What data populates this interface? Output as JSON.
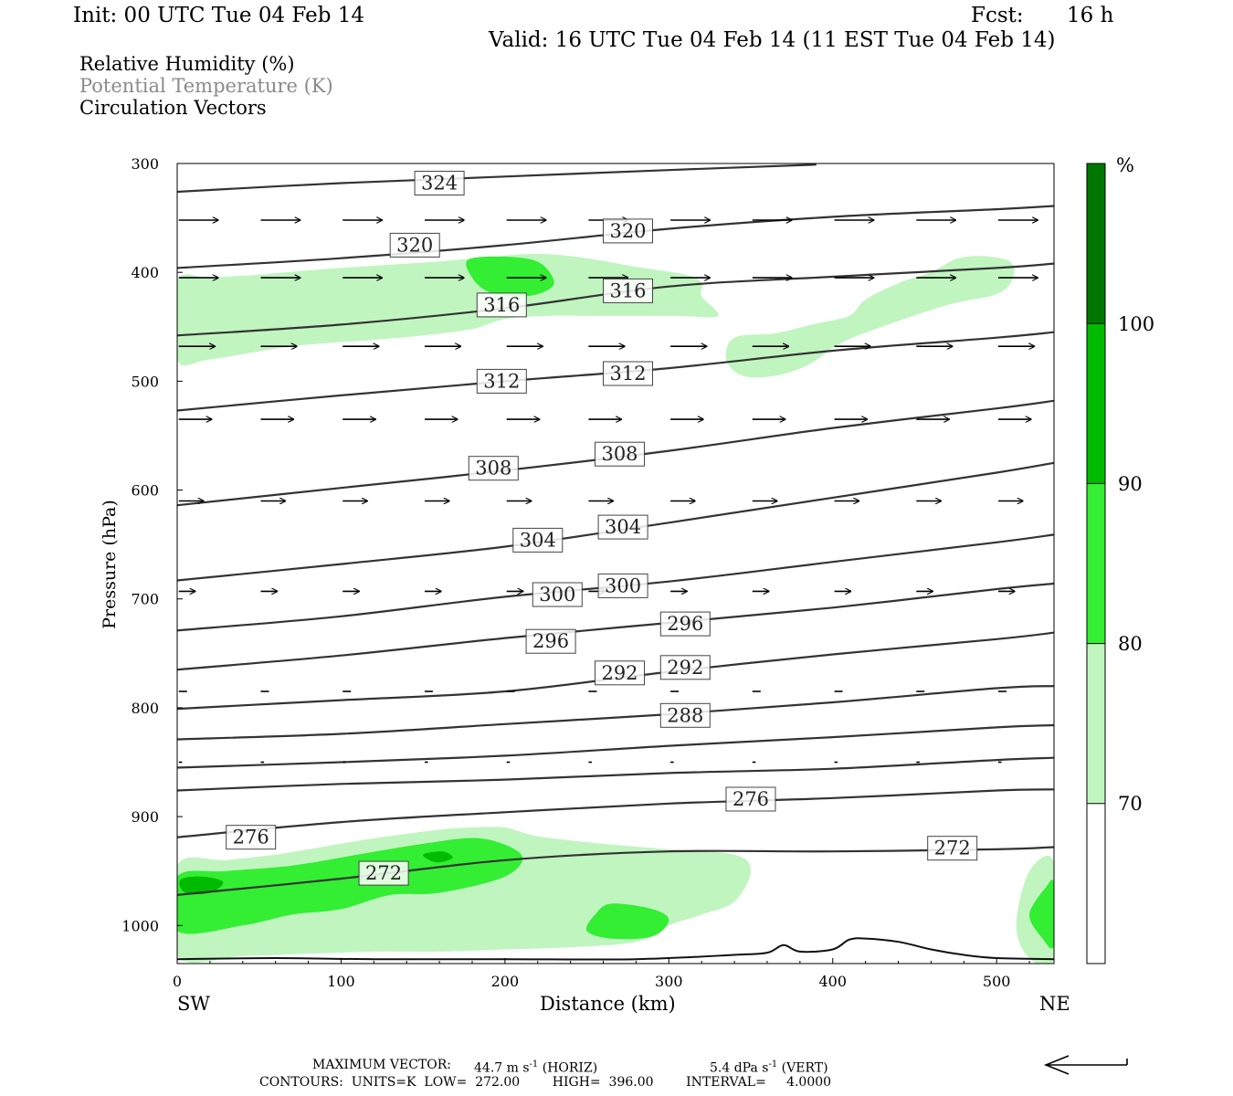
{
  "header": {
    "init": "Init: 00 UTC Tue 04 Feb 14",
    "fcst_label": "Fcst:",
    "fcst_value": "16 h",
    "valid": "Valid: 16 UTC Tue 04 Feb 14 (11 EST Tue 04 Feb 14)"
  },
  "legend_lines": {
    "rh": "Relative Humidity (%)",
    "theta": "Potential Temperature (K)",
    "vectors": "Circulation Vectors"
  },
  "chart_data": {
    "type": "heatmap",
    "xlabel": "Distance (km)",
    "ylabel": "Pressure (hPa)",
    "xlim": [
      0,
      535
    ],
    "ylim": [
      1035,
      300
    ],
    "y_scale": "linear",
    "x_ticks": [
      0,
      100,
      200,
      300,
      400,
      500
    ],
    "y_ticks": [
      300,
      400,
      500,
      600,
      700,
      800,
      900,
      1000
    ],
    "x_end_labels": {
      "left": "SW",
      "right": "NE"
    },
    "rh_colorbar": {
      "unit": "%",
      "levels": [
        70,
        80,
        90,
        100
      ],
      "colors": [
        "#ffffff",
        "#c0f5c0",
        "#33ee33",
        "#00bb00",
        "#007700"
      ]
    },
    "rh_regions": [
      {
        "level": 70,
        "color": "#c0f5c0",
        "points": [
          [
            0,
            408
          ],
          [
            20,
            405
          ],
          [
            50,
            402
          ],
          [
            90,
            397
          ],
          [
            130,
            393
          ],
          [
            160,
            390
          ],
          [
            190,
            386
          ],
          [
            220,
            383
          ],
          [
            250,
            387
          ],
          [
            280,
            395
          ],
          [
            310,
            402
          ],
          [
            320,
            410
          ],
          [
            320,
            422
          ],
          [
            330,
            440
          ],
          [
            305,
            440
          ],
          [
            260,
            440
          ],
          [
            225,
            440
          ],
          [
            200,
            443
          ],
          [
            180,
            452
          ],
          [
            150,
            458
          ],
          [
            120,
            462
          ],
          [
            70,
            468
          ],
          [
            20,
            480
          ],
          [
            0,
            480
          ]
        ]
      },
      {
        "level": 70,
        "color": "#c0f5c0",
        "points": [
          [
            340,
            460
          ],
          [
            365,
            456
          ],
          [
            390,
            447
          ],
          [
            410,
            440
          ],
          [
            420,
            425
          ],
          [
            440,
            410
          ],
          [
            460,
            400
          ],
          [
            475,
            388
          ],
          [
            490,
            385
          ],
          [
            508,
            390
          ],
          [
            510,
            405
          ],
          [
            500,
            420
          ],
          [
            470,
            430
          ],
          [
            430,
            450
          ],
          [
            405,
            465
          ],
          [
            385,
            485
          ],
          [
            365,
            495
          ],
          [
            345,
            495
          ],
          [
            335,
            480
          ]
        ]
      },
      {
        "level": 70,
        "color": "#c0f5c0",
        "points": [
          [
            0,
            945
          ],
          [
            30,
            940
          ],
          [
            60,
            935
          ],
          [
            80,
            930
          ],
          [
            120,
            920
          ],
          [
            160,
            912
          ],
          [
            180,
            910
          ],
          [
            200,
            910
          ],
          [
            220,
            918
          ],
          [
            260,
            925
          ],
          [
            300,
            930
          ],
          [
            340,
            935
          ],
          [
            350,
            950
          ],
          [
            340,
            978
          ],
          [
            320,
            990
          ],
          [
            300,
            1000
          ],
          [
            280,
            1015
          ],
          [
            240,
            1020
          ],
          [
            200,
            1022
          ],
          [
            160,
            1024
          ],
          [
            120,
            1024
          ],
          [
            80,
            1026
          ],
          [
            40,
            1028
          ],
          [
            0,
            1028
          ]
        ]
      },
      {
        "level": 70,
        "color": "#c0f5c0",
        "points": [
          [
            520,
            950
          ],
          [
            535,
            942
          ],
          [
            535,
            1030
          ],
          [
            520,
            1030
          ],
          [
            512,
            1000
          ]
        ]
      },
      {
        "level": 80,
        "color": "#33ee33",
        "points": [
          [
            178,
            388
          ],
          [
            205,
            386
          ],
          [
            222,
            392
          ],
          [
            230,
            410
          ],
          [
            220,
            420
          ],
          [
            205,
            422
          ],
          [
            190,
            418
          ],
          [
            180,
            405
          ]
        ]
      },
      {
        "level": 80,
        "color": "#33ee33",
        "points": [
          [
            0,
            955
          ],
          [
            30,
            950
          ],
          [
            70,
            945
          ],
          [
            110,
            935
          ],
          [
            150,
            925
          ],
          [
            185,
            920
          ],
          [
            210,
            935
          ],
          [
            200,
            955
          ],
          [
            160,
            970
          ],
          [
            130,
            972
          ],
          [
            100,
            985
          ],
          [
            70,
            990
          ],
          [
            40,
            1000
          ],
          [
            0,
            1005
          ]
        ]
      },
      {
        "level": 80,
        "color": "#33ee33",
        "points": [
          [
            265,
            980
          ],
          [
            290,
            985
          ],
          [
            300,
            995
          ],
          [
            290,
            1010
          ],
          [
            265,
            1012
          ],
          [
            250,
            1005
          ],
          [
            255,
            990
          ]
        ]
      },
      {
        "level": 80,
        "color": "#33ee33",
        "points": [
          [
            530,
            965
          ],
          [
            535,
            962
          ],
          [
            535,
            1018
          ],
          [
            528,
            1012
          ],
          [
            520,
            990
          ]
        ]
      },
      {
        "level": 90,
        "color": "#00bb00",
        "points": [
          [
            2,
            958
          ],
          [
            15,
            955
          ],
          [
            28,
            960
          ],
          [
            20,
            970
          ],
          [
            5,
            970
          ]
        ]
      },
      {
        "level": 90,
        "color": "#00bb00",
        "points": [
          [
            150,
            935
          ],
          [
            162,
            932
          ],
          [
            168,
            938
          ],
          [
            158,
            942
          ]
        ]
      }
    ],
    "theta_contours": [
      {
        "value": 324,
        "p": [
          [
            0,
            326
          ],
          [
            100,
            318
          ],
          [
            200,
            312
          ],
          [
            300,
            306
          ],
          [
            390,
            301
          ]
        ]
      },
      {
        "value": 320,
        "p": [
          [
            0,
            396
          ],
          [
            100,
            387
          ],
          [
            200,
            375
          ],
          [
            300,
            360
          ],
          [
            400,
            349
          ],
          [
            500,
            342
          ],
          [
            535,
            339
          ]
        ]
      },
      {
        "value": 316,
        "p": [
          [
            0,
            458
          ],
          [
            100,
            448
          ],
          [
            200,
            433
          ],
          [
            300,
            413
          ],
          [
            400,
            404
          ],
          [
            500,
            396
          ],
          [
            535,
            392
          ]
        ]
      },
      {
        "value": 312,
        "p": [
          [
            0,
            527
          ],
          [
            100,
            513
          ],
          [
            200,
            500
          ],
          [
            300,
            488
          ],
          [
            400,
            472
          ],
          [
            500,
            460
          ],
          [
            535,
            455
          ]
        ]
      },
      {
        "value": 308,
        "p": [
          [
            0,
            614
          ],
          [
            100,
            598
          ],
          [
            200,
            582
          ],
          [
            300,
            564
          ],
          [
            400,
            543
          ],
          [
            500,
            525
          ],
          [
            535,
            518
          ]
        ]
      },
      {
        "value": 304,
        "p": [
          [
            0,
            683
          ],
          [
            100,
            668
          ],
          [
            200,
            652
          ],
          [
            300,
            630
          ],
          [
            400,
            607
          ],
          [
            500,
            584
          ],
          [
            535,
            575
          ]
        ]
      },
      {
        "value": 300,
        "p": [
          [
            0,
            729
          ],
          [
            100,
            716
          ],
          [
            200,
            698
          ],
          [
            300,
            684
          ],
          [
            400,
            666
          ],
          [
            500,
            648
          ],
          [
            535,
            641
          ]
        ]
      },
      {
        "value": 296,
        "p": [
          [
            0,
            765
          ],
          [
            100,
            752
          ],
          [
            200,
            736
          ],
          [
            300,
            722
          ],
          [
            400,
            708
          ],
          [
            500,
            691
          ],
          [
            535,
            686
          ]
        ]
      },
      {
        "value": 292,
        "p": [
          [
            0,
            801
          ],
          [
            100,
            793
          ],
          [
            200,
            785
          ],
          [
            300,
            767
          ],
          [
            400,
            751
          ],
          [
            500,
            737
          ],
          [
            535,
            731
          ]
        ]
      },
      {
        "value": 288,
        "p": [
          [
            0,
            829
          ],
          [
            100,
            824
          ],
          [
            200,
            815
          ],
          [
            300,
            806
          ],
          [
            400,
            795
          ],
          [
            500,
            782
          ],
          [
            535,
            780
          ]
        ]
      },
      {
        "value": 284,
        "p": [
          [
            0,
            855
          ],
          [
            100,
            850
          ],
          [
            200,
            844
          ],
          [
            300,
            835
          ],
          [
            400,
            827
          ],
          [
            500,
            818
          ],
          [
            535,
            816
          ]
        ]
      },
      {
        "value": 280,
        "p": [
          [
            0,
            876
          ],
          [
            100,
            870
          ],
          [
            200,
            866
          ],
          [
            300,
            860
          ],
          [
            400,
            856
          ],
          [
            500,
            848
          ],
          [
            535,
            846
          ]
        ]
      },
      {
        "value": 276,
        "p": [
          [
            0,
            919
          ],
          [
            100,
            905
          ],
          [
            200,
            896
          ],
          [
            300,
            888
          ],
          [
            400,
            883
          ],
          [
            500,
            876
          ],
          [
            535,
            875
          ]
        ]
      },
      {
        "value": 272,
        "p": [
          [
            0,
            972
          ],
          [
            100,
            957
          ],
          [
            200,
            940
          ],
          [
            300,
            932
          ],
          [
            400,
            932
          ],
          [
            500,
            930
          ],
          [
            535,
            928
          ]
        ]
      }
    ],
    "surface_line": [
      [
        0,
        1031
      ],
      [
        60,
        1030
      ],
      [
        120,
        1031
      ],
      [
        200,
        1031
      ],
      [
        280,
        1031
      ],
      [
        340,
        1027
      ],
      [
        360,
        1025
      ],
      [
        370,
        1018
      ],
      [
        380,
        1024
      ],
      [
        400,
        1022
      ],
      [
        410,
        1013
      ],
      [
        420,
        1012
      ],
      [
        440,
        1015
      ],
      [
        460,
        1022
      ],
      [
        480,
        1027
      ],
      [
        500,
        1030
      ],
      [
        535,
        1031
      ]
    ],
    "contour_labels": [
      {
        "text": "324",
        "x": 160,
        "p": 318
      },
      {
        "text": "320",
        "x": 145,
        "p": 375
      },
      {
        "text": "320",
        "x": 275,
        "p": 362
      },
      {
        "text": "316",
        "x": 198,
        "p": 430
      },
      {
        "text": "316",
        "x": 275,
        "p": 417
      },
      {
        "text": "312",
        "x": 198,
        "p": 500
      },
      {
        "text": "312",
        "x": 275,
        "p": 493
      },
      {
        "text": "308",
        "x": 193,
        "p": 580
      },
      {
        "text": "308",
        "x": 270,
        "p": 567
      },
      {
        "text": "304",
        "x": 220,
        "p": 646
      },
      {
        "text": "304",
        "x": 272,
        "p": 634
      },
      {
        "text": "300",
        "x": 232,
        "p": 696
      },
      {
        "text": "300",
        "x": 272,
        "p": 688
      },
      {
        "text": "296",
        "x": 228,
        "p": 739
      },
      {
        "text": "296",
        "x": 310,
        "p": 723
      },
      {
        "text": "292",
        "x": 270,
        "p": 768
      },
      {
        "text": "292",
        "x": 310,
        "p": 763
      },
      {
        "text": "288",
        "x": 310,
        "p": 807
      },
      {
        "text": "276",
        "x": 350,
        "p": 884
      },
      {
        "text": "276",
        "x": 45,
        "p": 919
      },
      {
        "text": "272",
        "x": 473,
        "p": 929
      },
      {
        "text": "272",
        "x": 126,
        "p": 952
      }
    ],
    "vectors": [
      {
        "p": 352,
        "len_km": 24,
        "xs": [
          0,
          50,
          100,
          150,
          200,
          250,
          300,
          350,
          400,
          450,
          500
        ]
      },
      {
        "p": 405,
        "len_km": 24,
        "xs": [
          0,
          50,
          100,
          150,
          200,
          250,
          300,
          350,
          400,
          450,
          500
        ]
      },
      {
        "p": 468,
        "len_km": 22,
        "xs": [
          0,
          50,
          100,
          150,
          200,
          250,
          300,
          350,
          400,
          450,
          500
        ]
      },
      {
        "p": 535,
        "len_km": 20,
        "xs": [
          0,
          50,
          100,
          150,
          200,
          250,
          300,
          350,
          400,
          450,
          500
        ]
      },
      {
        "p": 610,
        "len_km": 15,
        "xs": [
          0,
          50,
          100,
          150,
          200,
          250,
          300,
          350,
          400,
          450,
          500
        ]
      },
      {
        "p": 693,
        "len_km": 10,
        "xs": [
          0,
          50,
          100,
          150,
          200,
          250,
          300,
          350,
          400,
          450,
          500
        ]
      },
      {
        "p": 785,
        "len_km": 5,
        "xs": [
          0,
          50,
          100,
          150,
          200,
          250,
          300,
          350,
          400,
          450,
          500
        ]
      },
      {
        "p": 850,
        "len_km": 2,
        "xs": [
          0,
          50,
          100,
          150,
          200,
          250,
          300,
          350,
          400,
          450,
          500
        ]
      }
    ]
  },
  "colorbar_labels": {
    "unit": "%",
    "l100": "100",
    "l90": "90",
    "l80": "80",
    "l70": "70"
  },
  "footer": {
    "max_vector_label": "MAXIMUM VECTOR:",
    "horiz_value": "44.7 m s",
    "horiz_suffix": " (HORIZ)",
    "vert_value": "5.4 dPa s",
    "vert_suffix": " (VERT)",
    "exponent": "-1",
    "contours_line": "CONTOURS:  UNITS=K  LOW=  272.00        HIGH=  396.00        INTERVAL=     4.0000"
  }
}
